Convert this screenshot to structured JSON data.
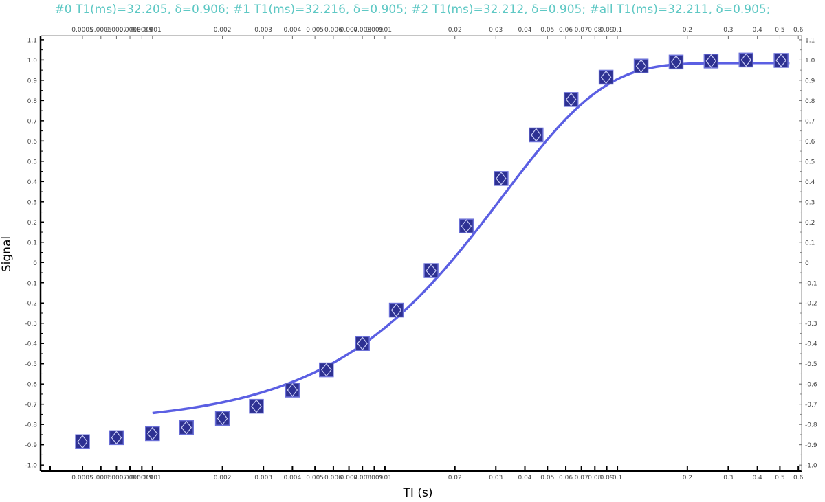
{
  "chart_data": {
    "type": "scatter",
    "title": "#0 T1(ms)=32.205, δ=0.906; #1 T1(ms)=32.216, δ=0.905; #2 T1(ms)=32.212, δ=0.905; #all T1(ms)=32.211, δ=0.905;",
    "xlabel": "TI (s)",
    "ylabel": "Signal",
    "x_scale": "log",
    "xlim": [
      0.00033,
      0.62
    ],
    "ylim": [
      -1.03,
      1.12
    ],
    "grid": false,
    "x_ticks": [
      {
        "v": 0.0005,
        "label": "0.0005"
      },
      {
        "v": 0.0006,
        "label": "0.0006"
      },
      {
        "v": 0.0007,
        "label": "0.0007"
      },
      {
        "v": 0.0008,
        "label": "0.0008"
      },
      {
        "v": 0.0009,
        "label": "0.0009"
      },
      {
        "v": 0.001,
        "label": "0.001"
      },
      {
        "v": 0.002,
        "label": "0.002"
      },
      {
        "v": 0.003,
        "label": "0.003"
      },
      {
        "v": 0.004,
        "label": "0.004"
      },
      {
        "v": 0.005,
        "label": "0.005"
      },
      {
        "v": 0.006,
        "label": "0.006"
      },
      {
        "v": 0.007,
        "label": "0.007"
      },
      {
        "v": 0.008,
        "label": "0.008"
      },
      {
        "v": 0.009,
        "label": "0.009"
      },
      {
        "v": 0.01,
        "label": "0.01"
      },
      {
        "v": 0.02,
        "label": "0.02"
      },
      {
        "v": 0.03,
        "label": "0.03"
      },
      {
        "v": 0.04,
        "label": "0.04"
      },
      {
        "v": 0.05,
        "label": "0.05"
      },
      {
        "v": 0.06,
        "label": "0.06"
      },
      {
        "v": 0.07,
        "label": "0.07"
      },
      {
        "v": 0.08,
        "label": "0.08"
      },
      {
        "v": 0.09,
        "label": "0.09"
      },
      {
        "v": 0.1,
        "label": "0.1"
      },
      {
        "v": 0.2,
        "label": "0.2"
      },
      {
        "v": 0.3,
        "label": "0.3"
      },
      {
        "v": 0.4,
        "label": "0.4"
      },
      {
        "v": 0.5,
        "label": "0.5"
      },
      {
        "v": 0.6,
        "label": "0.6"
      }
    ],
    "y_ticks": [
      {
        "v": 1.1,
        "label": "1.1"
      },
      {
        "v": 1.0,
        "label": "1.0"
      },
      {
        "v": 0.9,
        "label": "0.9"
      },
      {
        "v": 0.8,
        "label": "0.8"
      },
      {
        "v": 0.7,
        "label": "0.7"
      },
      {
        "v": 0.6,
        "label": "0.6"
      },
      {
        "v": 0.5,
        "label": "0.5"
      },
      {
        "v": 0.4,
        "label": "0.4"
      },
      {
        "v": 0.3,
        "label": "0.3"
      },
      {
        "v": 0.2,
        "label": "0.2"
      },
      {
        "v": 0.1,
        "label": "0.1"
      },
      {
        "v": 0,
        "label": "0"
      },
      {
        "v": -0.1,
        "label": "-0.1"
      },
      {
        "v": -0.2,
        "label": "-0.2"
      },
      {
        "v": -0.3,
        "label": "-0.3"
      },
      {
        "v": -0.4,
        "label": "-0.4"
      },
      {
        "v": -0.5,
        "label": "-0.5"
      },
      {
        "v": -0.6,
        "label": "-0.6"
      },
      {
        "v": -0.7,
        "label": "-0.7"
      },
      {
        "v": -0.8,
        "label": "-0.8"
      },
      {
        "v": -0.9,
        "label": "-0.9"
      },
      {
        "v": -1.0,
        "label": "-1.0"
      }
    ],
    "series": [
      {
        "kind": "points",
        "marker": "square-diamond",
        "color": "#2e3192",
        "x": [
          0.0005,
          0.0007,
          0.001,
          0.0014,
          0.002,
          0.0028,
          0.004,
          0.0056,
          0.008,
          0.0112,
          0.0158,
          0.0224,
          0.0316,
          0.0447,
          0.0632,
          0.0894,
          0.1265,
          0.1789,
          0.253,
          0.3578,
          0.506
        ],
        "y": [
          -0.885,
          -0.865,
          -0.845,
          -0.815,
          -0.77,
          -0.71,
          -0.63,
          -0.53,
          -0.4,
          -0.235,
          -0.04,
          0.18,
          0.415,
          0.63,
          0.805,
          0.915,
          0.97,
          0.99,
          0.995,
          1.0,
          0.998
        ]
      },
      {
        "kind": "fit",
        "color": "#5b5fe3",
        "model": "exponential-recovery",
        "T1_ms": 32.211,
        "delta": 0.905,
        "x_range": [
          0.001,
          0.55
        ]
      }
    ]
  }
}
